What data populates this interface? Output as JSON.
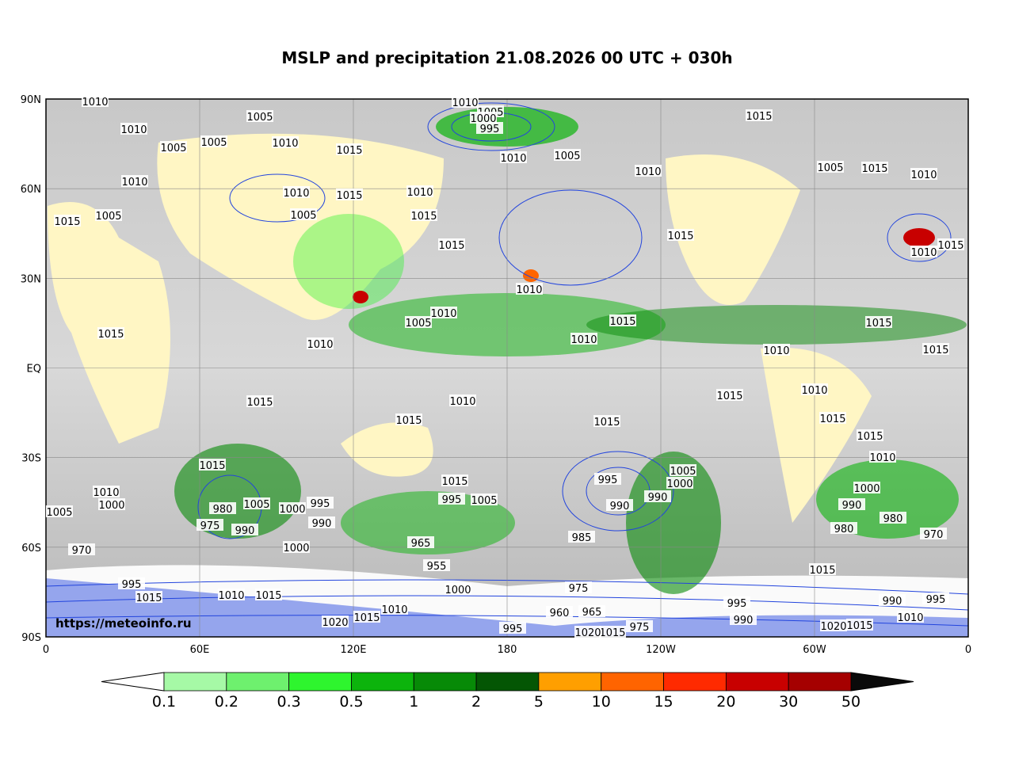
{
  "title": "MSLP and precipitation 21.08.2026 00 UTC + 030h",
  "watermark": "https://meteoinfo.ru",
  "lat_labels": [
    "90N",
    "60N",
    "30N",
    "EQ",
    "30S",
    "60S",
    "90S"
  ],
  "lon_labels": [
    "0",
    "60E",
    "120E",
    "180",
    "120W",
    "60W",
    "0"
  ],
  "colorbar": {
    "levels": [
      0.1,
      0.2,
      0.3,
      0.5,
      1,
      2,
      5,
      10,
      15,
      20,
      30,
      50
    ],
    "colors": [
      "#a6f9a6",
      "#6ef06e",
      "#2ef52e",
      "#0cb40c",
      "#078a07",
      "#045604",
      "#ff9f00",
      "#ff6400",
      "#ff2a00",
      "#c80000",
      "#a50000"
    ],
    "under_color": "#ffffff",
    "over_color": "#0a0a0a"
  },
  "isobar_labels": [
    1010,
    1005,
    1010,
    1005,
    1005,
    1010,
    1015,
    1010,
    1005,
    1000,
    995,
    1010,
    1005,
    1015,
    1010,
    1005,
    1015,
    1010,
    1010,
    1010,
    1015,
    1010,
    1005,
    1005,
    1015,
    1015,
    1015,
    1015,
    1010,
    1015,
    1010,
    1005,
    1010,
    1015,
    1010,
    1015,
    1015,
    1010,
    1015,
    1010,
    1015,
    1010,
    1015,
    1010,
    1015,
    1015,
    1015,
    1015,
    1015,
    1010,
    1005,
    995,
    1000,
    1015,
    995,
    1005,
    1010,
    1000,
    980,
    1005,
    1000,
    995,
    990,
    990,
    975,
    1005,
    970,
    1000,
    965,
    955,
    985,
    990,
    990,
    1000,
    990,
    980,
    980,
    970,
    1015,
    975,
    965,
    960,
    1020,
    1015,
    1010,
    1000,
    995,
    1015,
    1010,
    1015,
    995,
    990,
    990,
    995,
    1020,
    1015,
    1010,
    975,
    1015,
    1020,
    995
  ]
}
